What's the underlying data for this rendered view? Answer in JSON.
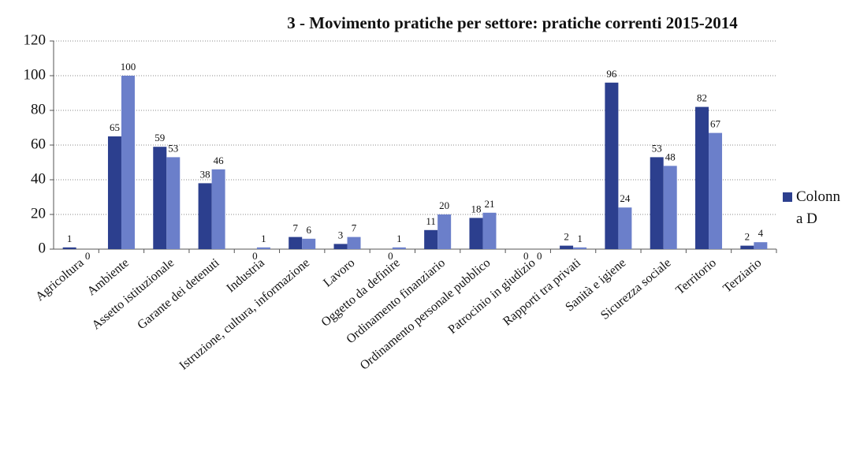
{
  "chart_data": {
    "type": "bar",
    "title": "3 - Movimento pratiche per settore: pratiche correnti 2015-2014",
    "categories": [
      "Agricoltura",
      "Ambiente",
      "Assetto istituzionale",
      "Garante dei detenuti",
      "Industria",
      "Istruzione, cultura, informazione",
      "Lavoro",
      "Oggetto da definire",
      "Ordinamento finanziario",
      "Ordinamento personale pubblico",
      "Patrocinio in giudizio",
      "Rapporti tra privati",
      "Sanità e igiene",
      "Sicurezza sociale",
      "Territorio",
      "Terziario"
    ],
    "series": [
      {
        "name": "Colonna D",
        "color": "#2c3f8e",
        "values": [
          1,
          65,
          59,
          38,
          0,
          7,
          3,
          0,
          11,
          18,
          0,
          2,
          96,
          53,
          82,
          2
        ]
      },
      {
        "color": "#6b7fca",
        "values": [
          0,
          100,
          53,
          46,
          1,
          6,
          7,
          1,
          20,
          21,
          0,
          1,
          24,
          48,
          67,
          4
        ]
      }
    ],
    "ylim": [
      0,
      120
    ],
    "yticks": [
      0,
      20,
      40,
      60,
      80,
      100,
      120
    ],
    "grid": true,
    "legend": "right"
  }
}
